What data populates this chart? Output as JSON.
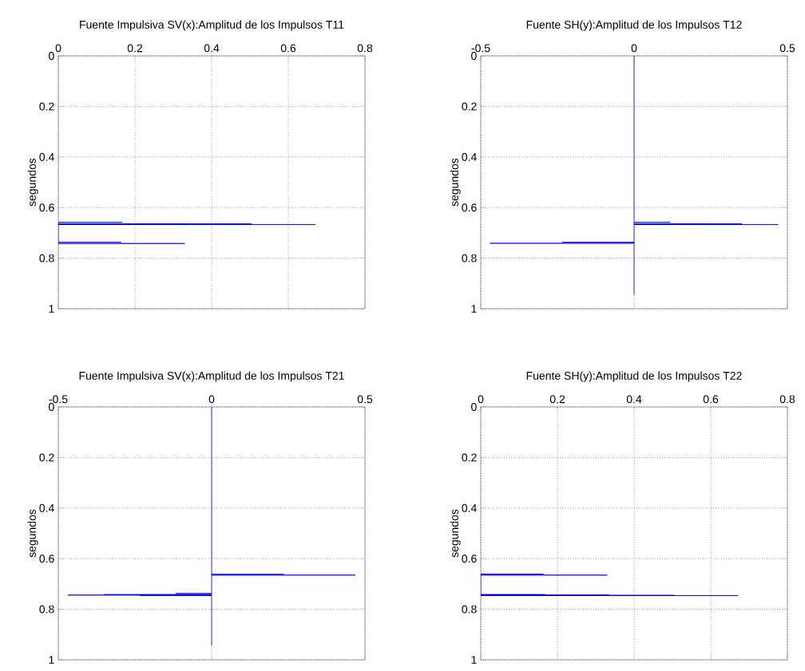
{
  "chart_data": [
    {
      "type": "line",
      "title": "Fuente Impulsiva SV(x):Amplitud de los Impulsos T11",
      "ylabel": "segundos",
      "xlim": [
        0,
        0.8
      ],
      "ylim": [
        1,
        0
      ],
      "xticks": [
        0,
        0.2,
        0.4,
        0.6,
        0.8
      ],
      "yticks": [
        0,
        0.2,
        0.4,
        0.6,
        0.8,
        1
      ],
      "grid": true,
      "series": [
        {
          "color": "#0000ff",
          "x": [
            0,
            0.167,
            0,
            0,
            0.504,
            0,
            0,
            0.334,
            0,
            0,
            0.671,
            0,
            0,
            0.164,
            0,
            0,
            0.33,
            0
          ],
          "values": [
            0.658,
            0.658,
            0.658,
            0.664,
            0.664,
            0.664,
            0.665,
            0.665,
            0.665,
            0.667,
            0.667,
            0.667,
            0.737,
            0.737,
            0.737,
            0.742,
            0.742,
            0.742
          ]
        }
      ]
    },
    {
      "type": "line",
      "title": "Fuente SH(y):Amplitud de los Impulsos T12",
      "ylabel": "segundos",
      "xlim": [
        -0.5,
        0.5
      ],
      "ylim": [
        1,
        0
      ],
      "xticks": [
        -0.5,
        0,
        0.5
      ],
      "yticks": [
        0,
        0.2,
        0.4,
        0.6,
        0.8,
        1
      ],
      "grid": true,
      "series": [
        {
          "color": "#0000ff",
          "x": [
            0,
            0,
            0.118,
            0,
            0,
            0.352,
            0,
            0,
            0.234,
            0,
            0,
            0.47,
            0,
            0,
            -0.234,
            0,
            0,
            -0.47,
            0,
            0
          ],
          "values": [
            0,
            0.658,
            0.658,
            0.658,
            0.664,
            0.664,
            0.664,
            0.665,
            0.665,
            0.665,
            0.667,
            0.667,
            0.667,
            0.737,
            0.737,
            0.737,
            0.741,
            0.741,
            0.741,
            0.945
          ]
        }
      ]
    },
    {
      "type": "line",
      "title": "Fuente Impulsiva SV(x):Amplitud de los Impulsos T21",
      "ylabel": "segundos",
      "xlim": [
        -0.5,
        0.5
      ],
      "ylim": [
        1,
        0
      ],
      "xticks": [
        -0.5,
        0,
        0.5
      ],
      "yticks": [
        0,
        0.2,
        0.4,
        0.6,
        0.8,
        1
      ],
      "grid": true,
      "series": [
        {
          "color": "#0000ff",
          "x": [
            0,
            0,
            0.235,
            0,
            0,
            0.469,
            0,
            0,
            -0.117,
            0,
            0,
            -0.352,
            0,
            0,
            -0.469,
            0,
            0,
            -0.234,
            0,
            0
          ],
          "values": [
            0,
            0.662,
            0.662,
            0.662,
            0.665,
            0.665,
            0.665,
            0.738,
            0.738,
            0.738,
            0.742,
            0.742,
            0.742,
            0.744,
            0.744,
            0.744,
            0.746,
            0.746,
            0.746,
            0.945
          ]
        }
      ]
    },
    {
      "type": "line",
      "title": "Fuente SH(y):Amplitud de los Impulsos T22",
      "ylabel": "segundos",
      "xlim": [
        0,
        0.8
      ],
      "ylim": [
        1,
        0
      ],
      "xticks": [
        0,
        0.2,
        0.4,
        0.6,
        0.8
      ],
      "yticks": [
        0,
        0.2,
        0.4,
        0.6,
        0.8,
        1
      ],
      "grid": true,
      "series": [
        {
          "color": "#0000ff",
          "x": [
            0,
            0.164,
            0,
            0,
            0.33,
            0,
            0,
            0.168,
            0,
            0,
            0.335,
            0,
            0,
            0.504,
            0,
            0,
            0.671,
            0
          ],
          "values": [
            0.661,
            0.661,
            0.661,
            0.665,
            0.665,
            0.665,
            0.742,
            0.742,
            0.742,
            0.744,
            0.744,
            0.744,
            0.745,
            0.745,
            0.745,
            0.746,
            0.746,
            0.746
          ]
        }
      ]
    }
  ]
}
